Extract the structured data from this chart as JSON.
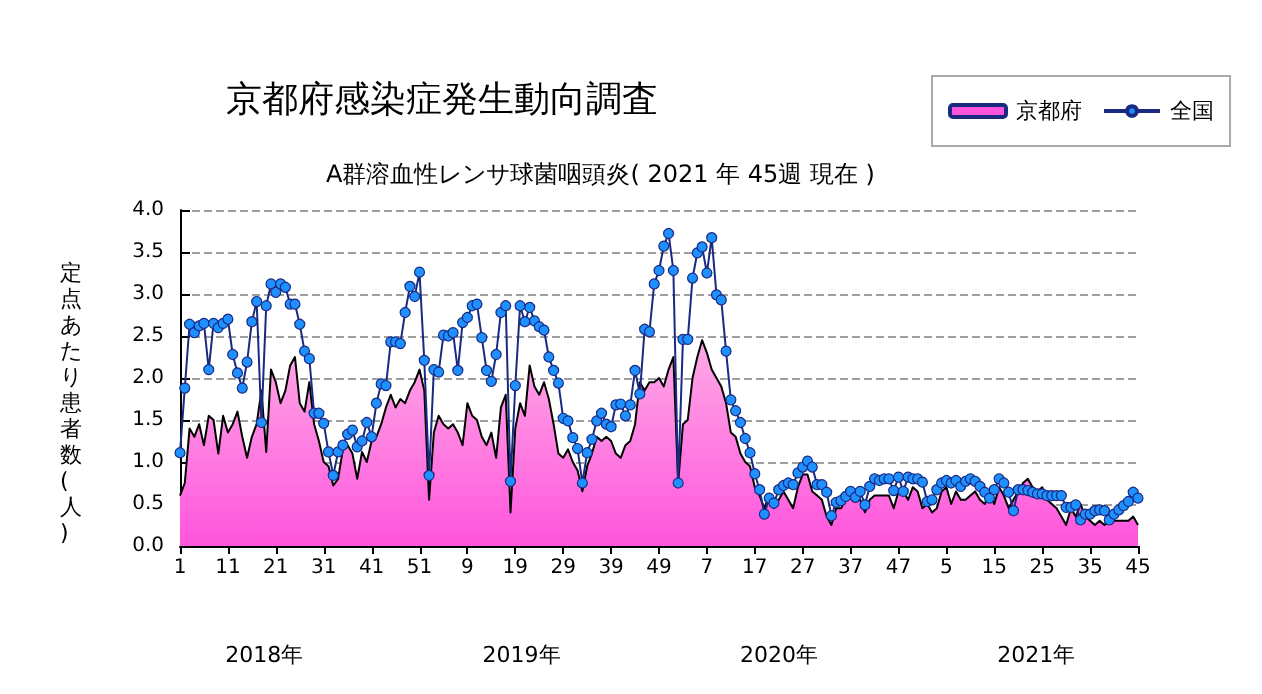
{
  "chart_data": {
    "type": "line",
    "title": "京都府感染症発生動向調査",
    "subtitle": "A群溶血性レンサ球菌咽頭炎( 2021 年 45週 現在 )",
    "ylabel": "定点あたり患者数(人)",
    "categories": [
      "1",
      null,
      null,
      null,
      null,
      null,
      null,
      null,
      null,
      null,
      "11",
      null,
      null,
      null,
      null,
      null,
      null,
      null,
      null,
      null,
      "21",
      null,
      null,
      null,
      null,
      null,
      null,
      null,
      null,
      null,
      "31",
      null,
      null,
      null,
      null,
      null,
      null,
      null,
      null,
      null,
      "41",
      null,
      null,
      null,
      null,
      null,
      null,
      null,
      null,
      null,
      "51",
      null,
      null,
      null,
      null,
      null,
      null,
      null,
      null,
      null,
      "9",
      null,
      null,
      null,
      null,
      null,
      null,
      null,
      null,
      null,
      "19",
      null,
      null,
      null,
      null,
      null,
      null,
      null,
      null,
      null,
      "29",
      null,
      null,
      null,
      null,
      null,
      null,
      null,
      null,
      null,
      "39",
      null,
      null,
      null,
      null,
      null,
      null,
      null,
      null,
      null,
      "49",
      null,
      null,
      null,
      null,
      null,
      null,
      null,
      null,
      null,
      "7",
      null,
      null,
      null,
      null,
      null,
      null,
      null,
      null,
      null,
      "17",
      null,
      null,
      null,
      null,
      null,
      null,
      null,
      null,
      null,
      "27",
      null,
      null,
      null,
      null,
      null,
      null,
      null,
      null,
      null,
      "37",
      null,
      null,
      null,
      null,
      null,
      null,
      null,
      null,
      null,
      "47",
      null,
      null,
      null,
      null,
      null,
      null,
      null,
      null,
      null,
      "5",
      null,
      null,
      null,
      null,
      null,
      null,
      null,
      null,
      null,
      "15",
      null,
      null,
      null,
      null,
      null,
      null,
      null,
      null,
      null,
      "25",
      null,
      null,
      null,
      null,
      null,
      null,
      null,
      null,
      null,
      "35",
      null,
      null,
      null,
      null,
      null,
      null,
      null,
      null,
      null,
      "45"
    ],
    "series": [
      {
        "name": "京都府",
        "type": "area",
        "color": "#ff55dd",
        "marker": "none",
        "values": [
          0.6,
          0.75,
          1.4,
          1.3,
          1.45,
          1.2,
          1.55,
          1.5,
          1.1,
          1.55,
          1.35,
          1.45,
          1.6,
          1.3,
          1.05,
          1.3,
          1.45,
          1.85,
          1.12,
          2.1,
          1.95,
          1.7,
          1.85,
          2.15,
          2.25,
          1.7,
          1.6,
          1.95,
          1.45,
          1.25,
          1.0,
          0.95,
          0.72,
          0.8,
          1.15,
          1.2,
          1.1,
          0.8,
          1.12,
          1.0,
          1.25,
          1.3,
          1.45,
          1.65,
          1.8,
          1.65,
          1.75,
          1.7,
          1.85,
          1.95,
          2.1,
          1.85,
          0.55,
          1.35,
          1.55,
          1.45,
          1.4,
          1.45,
          1.35,
          1.2,
          1.7,
          1.55,
          1.5,
          1.3,
          1.2,
          1.35,
          1.05,
          1.65,
          1.8,
          0.4,
          1.4,
          1.7,
          1.55,
          2.15,
          1.9,
          1.8,
          1.95,
          1.75,
          1.45,
          1.1,
          1.05,
          1.15,
          1.0,
          0.9,
          0.65,
          0.95,
          1.1,
          1.3,
          1.25,
          1.3,
          1.25,
          1.1,
          1.05,
          1.2,
          1.25,
          1.45,
          1.95,
          1.85,
          1.95,
          1.95,
          2.0,
          1.9,
          2.1,
          2.25,
          0.75,
          1.45,
          1.5,
          2.0,
          2.25,
          2.45,
          2.3,
          2.1,
          2.0,
          1.9,
          1.7,
          1.35,
          1.3,
          1.1,
          1.0,
          0.95,
          0.7,
          0.6,
          0.45,
          0.6,
          0.45,
          0.55,
          0.65,
          0.55,
          0.45,
          0.7,
          0.85,
          0.85,
          0.65,
          0.6,
          0.55,
          0.35,
          0.25,
          0.45,
          0.45,
          0.55,
          0.6,
          0.6,
          0.55,
          0.4,
          0.55,
          0.6,
          0.6,
          0.6,
          0.6,
          0.45,
          0.65,
          0.65,
          0.55,
          0.7,
          0.65,
          0.45,
          0.5,
          0.4,
          0.45,
          0.65,
          0.7,
          0.5,
          0.65,
          0.55,
          0.55,
          0.6,
          0.65,
          0.55,
          0.5,
          0.6,
          0.5,
          0.7,
          0.6,
          0.45,
          0.55,
          0.65,
          0.75,
          0.8,
          0.7,
          0.65,
          0.7,
          0.55,
          0.5,
          0.45,
          0.35,
          0.25,
          0.45,
          0.35,
          0.5,
          0.35,
          0.3,
          0.25,
          0.3,
          0.25,
          0.3,
          0.3,
          0.3,
          0.3,
          0.3,
          0.35,
          0.25
        ]
      },
      {
        "name": "全国",
        "type": "line",
        "color": "#1e90ff",
        "marker": "circle",
        "values": [
          1.11,
          1.88,
          2.64,
          2.54,
          2.62,
          2.65,
          2.1,
          2.65,
          2.6,
          2.65,
          2.7,
          2.28,
          2.06,
          1.88,
          2.19,
          2.67,
          2.91,
          1.47,
          2.86,
          3.12,
          3.02,
          3.12,
          3.08,
          2.88,
          2.88,
          2.64,
          2.32,
          2.23,
          1.58,
          1.58,
          1.46,
          1.12,
          0.84,
          1.12,
          1.2,
          1.33,
          1.38,
          1.18,
          1.25,
          1.47,
          1.3,
          1.7,
          1.93,
          1.91,
          2.43,
          2.43,
          2.41,
          2.78,
          3.09,
          2.97,
          3.26,
          2.21,
          0.84,
          2.1,
          2.07,
          2.51,
          2.5,
          2.54,
          2.09,
          2.66,
          2.72,
          2.86,
          2.88,
          2.48,
          2.09,
          1.96,
          2.28,
          2.78,
          2.86,
          0.77,
          1.91,
          2.86,
          2.67,
          2.84,
          2.68,
          2.61,
          2.57,
          2.25,
          2.09,
          1.94,
          1.52,
          1.49,
          1.29,
          1.16,
          0.75,
          1.11,
          1.27,
          1.49,
          1.58,
          1.45,
          1.42,
          1.68,
          1.69,
          1.55,
          1.68,
          2.09,
          1.81,
          2.58,
          2.55,
          3.12,
          3.28,
          3.57,
          3.72,
          3.28,
          0.75,
          2.46,
          2.46,
          3.19,
          3.49,
          3.56,
          3.25,
          3.67,
          2.99,
          2.93,
          2.32,
          1.74,
          1.61,
          1.47,
          1.28,
          1.11,
          0.86,
          0.67,
          0.38,
          0.57,
          0.51,
          0.67,
          0.72,
          0.75,
          0.73,
          0.87,
          0.94,
          1.01,
          0.94,
          0.73,
          0.73,
          0.64,
          0.36,
          0.52,
          0.54,
          0.59,
          0.65,
          0.58,
          0.65,
          0.49,
          0.71,
          0.8,
          0.78,
          0.8,
          0.8,
          0.66,
          0.82,
          0.65,
          0.82,
          0.8,
          0.8,
          0.76,
          0.53,
          0.55,
          0.67,
          0.75,
          0.78,
          0.75,
          0.78,
          0.71,
          0.77,
          0.8,
          0.77,
          0.71,
          0.64,
          0.57,
          0.67,
          0.8,
          0.75,
          0.64,
          0.42,
          0.67,
          0.67,
          0.66,
          0.64,
          0.62,
          0.62,
          0.6,
          0.6,
          0.6,
          0.6,
          0.46,
          0.46,
          0.49,
          0.31,
          0.38,
          0.38,
          0.42,
          0.43,
          0.42,
          0.31,
          0.38,
          0.43,
          0.48,
          0.53,
          0.64,
          0.57
        ]
      }
    ],
    "ylim": [
      0,
      4
    ],
    "yticks": [
      {
        "value": 0,
        "label": "0.0"
      },
      {
        "value": 0.5,
        "label": "0.5"
      },
      {
        "value": 1,
        "label": "1.0"
      },
      {
        "value": 1.5,
        "label": "1.5"
      },
      {
        "value": 2,
        "label": "2.0"
      },
      {
        "value": 2.5,
        "label": "2.5"
      },
      {
        "value": 3,
        "label": "3.0"
      },
      {
        "value": 3.5,
        "label": "3.5"
      },
      {
        "value": 4,
        "label": "4.0"
      }
    ],
    "grid": "y",
    "legend": "top right",
    "annotations": [
      "2018年",
      "2019年",
      "2020年",
      "2021年"
    ]
  }
}
